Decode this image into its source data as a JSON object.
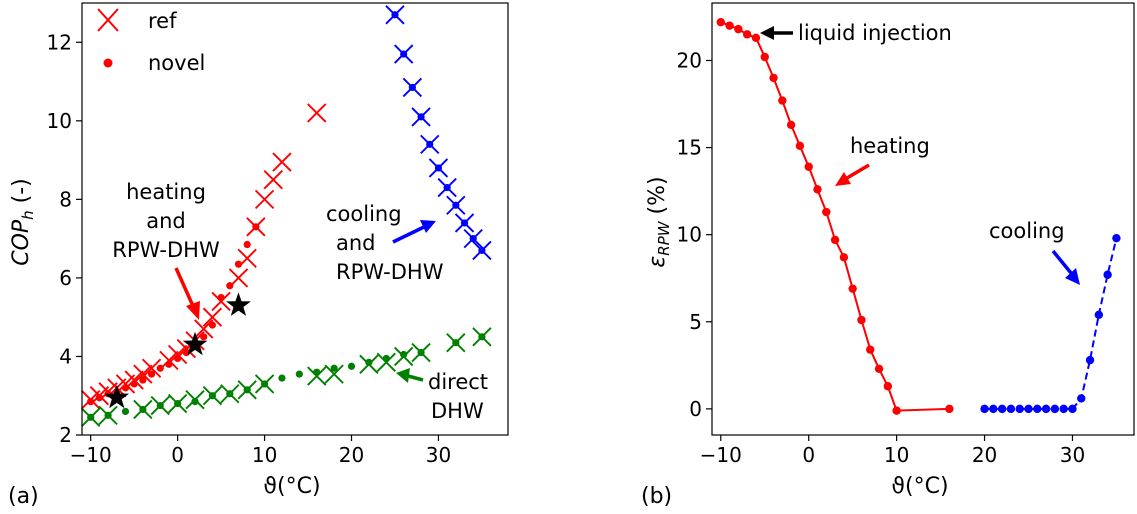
{
  "chart_data": [
    {
      "panel": "(a)",
      "type": "scatter",
      "xlabel": "ϑ(°C)",
      "ylabel": "COP_h (-)",
      "xlim": [
        -11,
        38
      ],
      "ylim": [
        2,
        13
      ],
      "xticks": [
        -10,
        0,
        10,
        20,
        30
      ],
      "yticks": [
        2,
        4,
        6,
        8,
        10,
        12
      ],
      "legend": {
        "placement": "top-left",
        "entries": [
          {
            "label": "ref",
            "marker": "x"
          },
          {
            "label": "novel",
            "marker": "dot"
          }
        ]
      },
      "series": [
        {
          "mode": "heating and RPW-DHW",
          "method": "ref",
          "color": "#ff0000",
          "marker": "x",
          "points": [
            [
              -10,
              2.9
            ],
            [
              -9,
              3.0
            ],
            [
              -8,
              3.1
            ],
            [
              -7,
              3.2
            ],
            [
              -6,
              3.3
            ],
            [
              -5,
              3.4
            ],
            [
              -4,
              3.55
            ],
            [
              -3,
              3.7
            ],
            [
              -1,
              3.9
            ],
            [
              0,
              4.05
            ],
            [
              1,
              4.2
            ],
            [
              2,
              4.4
            ],
            [
              3,
              4.7
            ],
            [
              4,
              5.0
            ],
            [
              5,
              5.4
            ],
            [
              7,
              6.0
            ],
            [
              8,
              6.5
            ],
            [
              9,
              7.3
            ],
            [
              10,
              8.0
            ],
            [
              11,
              8.5
            ],
            [
              12,
              8.95
            ],
            [
              16,
              10.2
            ]
          ]
        },
        {
          "mode": "heating and RPW-DHW",
          "method": "novel",
          "color": "#ff0000",
          "marker": "dot",
          "points": [
            [
              -10,
              2.85
            ],
            [
              -9,
              2.95
            ],
            [
              -8,
              3.05
            ],
            [
              -7,
              3.1
            ],
            [
              -6,
              3.2
            ],
            [
              -5,
              3.3
            ],
            [
              -4,
              3.4
            ],
            [
              -3,
              3.55
            ],
            [
              -2,
              3.7
            ],
            [
              -1,
              3.8
            ],
            [
              0,
              3.95
            ],
            [
              1,
              4.1
            ],
            [
              2,
              4.25
            ],
            [
              3,
              4.5
            ],
            [
              4,
              4.8
            ],
            [
              5,
              5.5
            ],
            [
              6,
              5.8
            ],
            [
              7,
              6.35
            ],
            [
              8,
              6.85
            ],
            [
              9,
              7.3
            ]
          ]
        },
        {
          "mode": "cooling and RPW-DHW",
          "method": "ref",
          "color": "#0000ff",
          "marker": "x",
          "points": [
            [
              25,
              12.7
            ],
            [
              26,
              11.7
            ],
            [
              27,
              10.85
            ],
            [
              28,
              10.1
            ],
            [
              29,
              9.4
            ],
            [
              30,
              8.8
            ],
            [
              31,
              8.3
            ],
            [
              32,
              7.85
            ],
            [
              33,
              7.4
            ],
            [
              34,
              7.0
            ],
            [
              35,
              6.7
            ]
          ]
        },
        {
          "mode": "cooling and RPW-DHW",
          "method": "novel",
          "color": "#0000ff",
          "marker": "dot",
          "points": [
            [
              25,
              12.7
            ],
            [
              26,
              11.7
            ],
            [
              27,
              10.85
            ],
            [
              28,
              10.1
            ],
            [
              29,
              9.4
            ],
            [
              30,
              8.8
            ],
            [
              31,
              8.3
            ],
            [
              32,
              7.85
            ],
            [
              33,
              7.4
            ],
            [
              34,
              7.0
            ],
            [
              35,
              6.7
            ]
          ]
        },
        {
          "mode": "direct DHW",
          "method": "ref",
          "color": "#008000",
          "marker": "x",
          "points": [
            [
              -10,
              2.45
            ],
            [
              -8,
              2.5
            ],
            [
              -4,
              2.65
            ],
            [
              -2,
              2.75
            ],
            [
              0,
              2.8
            ],
            [
              2,
              2.9
            ],
            [
              4,
              3.0
            ],
            [
              6,
              3.05
            ],
            [
              8,
              3.15
            ],
            [
              10,
              3.3
            ],
            [
              16,
              3.5
            ],
            [
              18,
              3.55
            ],
            [
              22,
              3.8
            ],
            [
              24,
              3.85
            ],
            [
              26,
              4.0
            ],
            [
              28,
              4.1
            ],
            [
              32,
              4.35
            ],
            [
              35,
              4.5
            ]
          ]
        },
        {
          "mode": "direct DHW",
          "method": "novel",
          "color": "#008000",
          "marker": "dot",
          "points": [
            [
              -10,
              2.45
            ],
            [
              -8,
              2.5
            ],
            [
              -6,
              2.6
            ],
            [
              -4,
              2.65
            ],
            [
              -2,
              2.75
            ],
            [
              0,
              2.8
            ],
            [
              2,
              2.85
            ],
            [
              4,
              3.0
            ],
            [
              6,
              3.05
            ],
            [
              8,
              3.15
            ],
            [
              10,
              3.3
            ],
            [
              12,
              3.45
            ],
            [
              14,
              3.55
            ],
            [
              16,
              3.6
            ],
            [
              18,
              3.7
            ],
            [
              20,
              3.75
            ],
            [
              22,
              3.85
            ],
            [
              24,
              3.95
            ],
            [
              26,
              4.05
            ],
            [
              28,
              4.1
            ],
            [
              32,
              4.35
            ],
            [
              35,
              4.5
            ]
          ]
        },
        {
          "mode": "marked points",
          "method": "star",
          "color": "#000000",
          "marker": "star",
          "points": [
            [
              -7,
              2.95
            ],
            [
              2,
              4.3
            ],
            [
              7,
              5.3
            ]
          ]
        }
      ],
      "annotations": [
        {
          "lines": [
            "heating",
            "and",
            "RPW-DHW"
          ],
          "color": "#ff0000"
        },
        {
          "lines": [
            "cooling",
            "and",
            "RPW-DHW"
          ],
          "color": "#0000ff"
        },
        {
          "lines": [
            "direct",
            "DHW"
          ],
          "color": "#008000"
        }
      ]
    },
    {
      "panel": "(b)",
      "type": "line",
      "xlabel": "ϑ(°C)",
      "ylabel": "ε_RPW (%)",
      "xlim": [
        -11,
        37
      ],
      "ylim": [
        -1.5,
        23.3
      ],
      "xticks": [
        -10,
        0,
        10,
        20,
        30
      ],
      "yticks": [
        0,
        5,
        10,
        15,
        20
      ],
      "series": [
        {
          "mode": "heating",
          "color": "#ff0000",
          "style": "solid",
          "points": [
            [
              -10,
              22.2
            ],
            [
              -9,
              22.0
            ],
            [
              -8,
              21.8
            ],
            [
              -7,
              21.5
            ],
            [
              -6,
              21.3
            ],
            [
              -5,
              20.2
            ],
            [
              -4,
              19.0
            ],
            [
              -3,
              17.7
            ],
            [
              -2,
              16.3
            ],
            [
              -1,
              15.1
            ],
            [
              0,
              13.9
            ],
            [
              1,
              12.6
            ],
            [
              2,
              11.3
            ],
            [
              3,
              9.7
            ],
            [
              4,
              8.7
            ],
            [
              5,
              6.9
            ],
            [
              6,
              5.1
            ],
            [
              7,
              3.4
            ],
            [
              8,
              2.3
            ],
            [
              9,
              1.3
            ],
            [
              10,
              -0.1
            ],
            [
              16,
              0.0
            ]
          ]
        },
        {
          "mode": "cooling",
          "color": "#0000ff",
          "style": "dashed",
          "points": [
            [
              20,
              0.0
            ],
            [
              21,
              0.0
            ],
            [
              22,
              0.0
            ],
            [
              23,
              0.0
            ],
            [
              24,
              0.0
            ],
            [
              25,
              0.0
            ],
            [
              26,
              0.0
            ],
            [
              27,
              0.0
            ],
            [
              28,
              0.0
            ],
            [
              29,
              0.0
            ],
            [
              30,
              0.0
            ],
            [
              31,
              0.6
            ],
            [
              32,
              2.8
            ],
            [
              33,
              5.4
            ],
            [
              34,
              7.7
            ],
            [
              35,
              9.8
            ]
          ]
        }
      ],
      "annotations": [
        {
          "lines": [
            "liquid injection"
          ],
          "color": "#000000"
        },
        {
          "lines": [
            "heating"
          ],
          "color": "#ff0000"
        },
        {
          "lines": [
            "cooling"
          ],
          "color": "#0000ff"
        }
      ]
    }
  ]
}
